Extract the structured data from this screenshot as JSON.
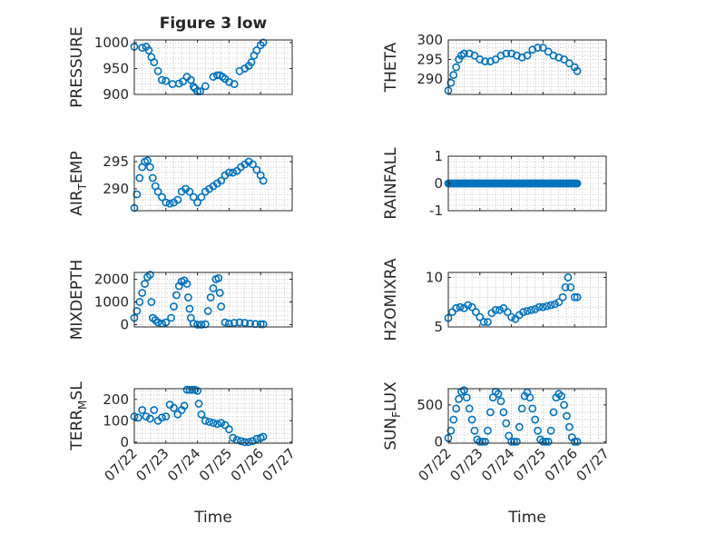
{
  "figure_title": "Figure 3 low",
  "colors": {
    "marker": "#0072bd",
    "axes": "#262626",
    "grid": "#bdbdbd"
  },
  "x_ticks": [
    "07/22",
    "07/23",
    "07/24",
    "07/25",
    "07/26",
    "07/27"
  ],
  "chart_data": [
    {
      "type": "scatter",
      "title": "Figure 3 low",
      "ylabel": "PRESSURE",
      "xlabel": "",
      "xlim": [
        "07/22",
        "07/27"
      ],
      "ylim": [
        900,
        1005
      ],
      "yticks": [
        900,
        950,
        1000
      ],
      "grid": true,
      "x": [
        "07/22 00:00",
        "07/22 06:00",
        "07/22 09:00",
        "07/22 11:00",
        "07/22 13:00",
        "07/22 15:00",
        "07/22 18:00",
        "07/22 21:00",
        "07/23 00:00",
        "07/23 05:00",
        "07/23 10:00",
        "07/23 13:00",
        "07/23 16:00",
        "07/23 19:00",
        "07/23 21:00",
        "07/23 22:00",
        "07/24 00:00",
        "07/24 02:00",
        "07/24 06:00",
        "07/24 12:00",
        "07/24 15:00",
        "07/24 17:00",
        "07/24 19:00",
        "07/24 21:00",
        "07/25 00:00",
        "07/25 04:00",
        "07/25 08:00",
        "07/25 12:00",
        "07/25 15:00",
        "07/25 17:00",
        "07/25 19:00",
        "07/25 21:00",
        "07/26 00:00",
        "07/26 02:00"
      ],
      "y": [
        992,
        990,
        992,
        985,
        972,
        962,
        945,
        928,
        926,
        920,
        921,
        925,
        934,
        928,
        915,
        912,
        906,
        906,
        916,
        934,
        937,
        937,
        934,
        930,
        924,
        920,
        945,
        950,
        955,
        962,
        975,
        985,
        995,
        1000
      ]
    },
    {
      "type": "scatter",
      "ylabel": "THETA",
      "xlabel": "",
      "xlim": [
        "07/22",
        "07/27"
      ],
      "ylim": [
        286,
        300
      ],
      "yticks": [
        290,
        295,
        300
      ],
      "grid": true,
      "x": [
        "07/22 00:00",
        "07/22 02:00",
        "07/22 04:00",
        "07/22 06:00",
        "07/22 08:00",
        "07/22 10:00",
        "07/22 12:00",
        "07/22 16:00",
        "07/22 20:00",
        "07/23 00:00",
        "07/23 04:00",
        "07/23 08:00",
        "07/23 12:00",
        "07/23 16:00",
        "07/23 20:00",
        "07/24 00:00",
        "07/24 04:00",
        "07/24 08:00",
        "07/24 12:00",
        "07/24 16:00",
        "07/24 20:00",
        "07/25 00:00",
        "07/25 04:00",
        "07/25 08:00",
        "07/25 12:00",
        "07/25 16:00",
        "07/25 20:00",
        "07/26 00:00",
        "07/26 02:00"
      ],
      "y": [
        287,
        289,
        291,
        293,
        295,
        296,
        296.5,
        296.5,
        296,
        295,
        294.5,
        294.5,
        295,
        296,
        296.5,
        296.5,
        296,
        295.5,
        296,
        297.5,
        298,
        298,
        297,
        296,
        295.5,
        295,
        294,
        293,
        292
      ]
    },
    {
      "type": "scatter",
      "ylabel": "AIR_TEMP",
      "xlabel": "",
      "xlim": [
        "07/22",
        "07/27"
      ],
      "ylim": [
        286,
        296
      ],
      "yticks": [
        290,
        295
      ],
      "grid": true,
      "x": [
        "07/22 00:00",
        "07/22 02:00",
        "07/22 04:00",
        "07/22 06:00",
        "07/22 08:00",
        "07/22 10:00",
        "07/22 12:00",
        "07/22 14:00",
        "07/22 16:00",
        "07/22 18:00",
        "07/22 21:00",
        "07/23 00:00",
        "07/23 03:00",
        "07/23 06:00",
        "07/23 09:00",
        "07/23 12:00",
        "07/23 15:00",
        "07/23 18:00",
        "07/23 21:00",
        "07/24 00:00",
        "07/24 03:00",
        "07/24 06:00",
        "07/24 09:00",
        "07/24 12:00",
        "07/24 15:00",
        "07/24 18:00",
        "07/24 21:00",
        "07/25 00:00",
        "07/25 03:00",
        "07/25 06:00",
        "07/25 09:00",
        "07/25 12:00",
        "07/25 15:00",
        "07/25 18:00",
        "07/25 21:00",
        "07/26 00:00",
        "07/26 02:00"
      ],
      "y": [
        286.5,
        289,
        292,
        294,
        295,
        295.2,
        294,
        292,
        290.5,
        289.5,
        288.5,
        287.5,
        287.3,
        287.5,
        288,
        289.5,
        290,
        289.5,
        288.5,
        287.5,
        288.5,
        289.5,
        290,
        290.5,
        291,
        291.5,
        292.5,
        293,
        293,
        293.3,
        294,
        294.5,
        295,
        294.5,
        293.5,
        292.5,
        291.5
      ]
    },
    {
      "type": "scatter",
      "ylabel": "RAINFALL",
      "xlabel": "",
      "xlim": [
        "07/22",
        "07/27"
      ],
      "ylim": [
        -1,
        1
      ],
      "yticks": [
        -1,
        0,
        1
      ],
      "grid": true,
      "x_start": "07/22 00:00",
      "x_end": "07/26 02:00",
      "y_constant": 0
    },
    {
      "type": "scatter",
      "ylabel": "MIXDEPTH",
      "xlabel": "",
      "xlim": [
        "07/22",
        "07/27"
      ],
      "ylim": [
        -100,
        2300
      ],
      "yticks": [
        0,
        1000,
        2000
      ],
      "grid": true,
      "x": [
        "07/22 00:00",
        "07/22 02:00",
        "07/22 04:00",
        "07/22 06:00",
        "07/22 08:00",
        "07/22 10:00",
        "07/22 12:00",
        "07/22 13:00",
        "07/22 14:00",
        "07/22 16:00",
        "07/22 18:00",
        "07/22 21:00",
        "07/23 00:00",
        "07/23 04:00",
        "07/23 06:00",
        "07/23 08:00",
        "07/23 10:00",
        "07/23 12:00",
        "07/23 14:00",
        "07/23 16:00",
        "07/23 17:00",
        "07/23 18:00",
        "07/23 19:00",
        "07/23 21:00",
        "07/24 00:00",
        "07/24 03:00",
        "07/24 06:00",
        "07/24 08:00",
        "07/24 10:00",
        "07/24 12:00",
        "07/24 14:00",
        "07/24 16:00",
        "07/24 17:00",
        "07/24 18:00",
        "07/24 21:00",
        "07/25 00:00",
        "07/25 04:00",
        "07/25 08:00",
        "07/25 12:00",
        "07/25 16:00",
        "07/25 20:00",
        "07/26 00:00",
        "07/26 02:00"
      ],
      "y": [
        300,
        600,
        1000,
        1400,
        1800,
        2100,
        2200,
        1000,
        300,
        200,
        100,
        50,
        100,
        300,
        800,
        1300,
        1700,
        1900,
        1950,
        1800,
        1200,
        700,
        300,
        50,
        0,
        0,
        20,
        600,
        1200,
        1600,
        2000,
        2050,
        1400,
        800,
        100,
        50,
        80,
        100,
        80,
        50,
        30,
        20,
        20
      ]
    },
    {
      "type": "scatter",
      "ylabel": "H2OMIXRA",
      "xlabel": "",
      "xlim": [
        "07/22",
        "07/27"
      ],
      "ylim": [
        5,
        10.5
      ],
      "yticks": [
        5,
        10
      ],
      "grid": true,
      "x": [
        "07/22 00:00",
        "07/22 03:00",
        "07/22 06:00",
        "07/22 09:00",
        "07/22 12:00",
        "07/22 15:00",
        "07/22 18:00",
        "07/22 21:00",
        "07/23 00:00",
        "07/23 03:00",
        "07/23 06:00",
        "07/23 09:00",
        "07/23 12:00",
        "07/23 15:00",
        "07/23 18:00",
        "07/23 21:00",
        "07/24 00:00",
        "07/24 03:00",
        "07/24 06:00",
        "07/24 09:00",
        "07/24 12:00",
        "07/24 15:00",
        "07/24 18:00",
        "07/24 21:00",
        "07/25 00:00",
        "07/25 03:00",
        "07/25 06:00",
        "07/25 09:00",
        "07/25 12:00",
        "07/25 15:00",
        "07/25 17:00",
        "07/25 19:00",
        "07/25 21:00",
        "07/26 00:00",
        "07/26 02:00"
      ],
      "y": [
        5.9,
        6.5,
        6.9,
        7.0,
        6.9,
        7.2,
        7.0,
        6.5,
        6.0,
        5.5,
        5.5,
        6.4,
        6.7,
        6.7,
        6.9,
        6.5,
        6.0,
        5.8,
        6.2,
        6.5,
        6.6,
        6.7,
        6.8,
        7.0,
        7.0,
        7.1,
        7.2,
        7.3,
        7.5,
        8.0,
        9.0,
        10.0,
        9.0,
        8.0,
        8.0
      ]
    },
    {
      "type": "scatter",
      "ylabel": "TERR_MSL",
      "xlabel": "Time",
      "xlim": [
        "07/22",
        "07/27"
      ],
      "ylim": [
        -5,
        250
      ],
      "yticks": [
        0,
        100,
        200
      ],
      "grid": true,
      "x": [
        "07/22 00:00",
        "07/22 03:00",
        "07/22 06:00",
        "07/22 09:00",
        "07/22 12:00",
        "07/22 15:00",
        "07/22 18:00",
        "07/22 21:00",
        "07/23 00:00",
        "07/23 03:00",
        "07/23 06:00",
        "07/23 09:00",
        "07/23 12:00",
        "07/23 14:00",
        "07/23 16:00",
        "07/23 18:00",
        "07/23 20:00",
        "07/23 22:00",
        "07/24 00:00",
        "07/24 01:00",
        "07/24 03:00",
        "07/24 06:00",
        "07/24 09:00",
        "07/24 12:00",
        "07/24 15:00",
        "07/24 18:00",
        "07/24 21:00",
        "07/25 00:00",
        "07/25 03:00",
        "07/25 06:00",
        "07/25 09:00",
        "07/25 12:00",
        "07/25 15:00",
        "07/25 18:00",
        "07/25 21:00",
        "07/26 00:00",
        "07/26 02:00"
      ],
      "y": [
        120,
        115,
        150,
        120,
        110,
        150,
        100,
        115,
        120,
        175,
        160,
        130,
        150,
        170,
        245,
        245,
        245,
        245,
        240,
        180,
        130,
        100,
        95,
        90,
        85,
        90,
        80,
        60,
        20,
        10,
        5,
        0,
        0,
        5,
        15,
        20,
        25
      ]
    },
    {
      "type": "scatter",
      "ylabel": "SUN_FLUX",
      "xlabel": "Time",
      "xlim": [
        "07/22",
        "07/27"
      ],
      "ylim": [
        -20,
        720
      ],
      "yticks": [
        0,
        500
      ],
      "grid": true,
      "x": [
        "07/22 00:00",
        "07/22 02:00",
        "07/22 04:00",
        "07/22 06:00",
        "07/22 08:00",
        "07/22 10:00",
        "07/22 12:00",
        "07/22 14:00",
        "07/22 16:00",
        "07/22 18:00",
        "07/22 20:00",
        "07/22 22:00",
        "07/23 00:00",
        "07/23 02:00",
        "07/23 04:00",
        "07/23 06:00",
        "07/23 08:00",
        "07/23 10:00",
        "07/23 12:00",
        "07/23 14:00",
        "07/23 16:00",
        "07/23 18:00",
        "07/23 20:00",
        "07/23 22:00",
        "07/24 00:00",
        "07/24 02:00",
        "07/24 04:00",
        "07/24 06:00",
        "07/24 08:00",
        "07/24 10:00",
        "07/24 12:00",
        "07/24 14:00",
        "07/24 16:00",
        "07/24 18:00",
        "07/24 20:00",
        "07/24 22:00",
        "07/25 00:00",
        "07/25 02:00",
        "07/25 04:00",
        "07/25 06:00",
        "07/25 08:00",
        "07/25 10:00",
        "07/25 12:00",
        "07/25 14:00",
        "07/25 16:00",
        "07/25 18:00",
        "07/25 20:00",
        "07/25 22:00",
        "07/26 00:00",
        "07/26 02:00"
      ],
      "y": [
        50,
        150,
        300,
        450,
        580,
        680,
        700,
        600,
        450,
        300,
        150,
        30,
        0,
        0,
        0,
        150,
        400,
        600,
        680,
        650,
        550,
        400,
        250,
        80,
        0,
        0,
        0,
        200,
        450,
        620,
        670,
        600,
        450,
        300,
        150,
        30,
        0,
        0,
        0,
        150,
        400,
        600,
        650,
        620,
        500,
        350,
        200,
        60,
        0,
        0
      ]
    }
  ]
}
